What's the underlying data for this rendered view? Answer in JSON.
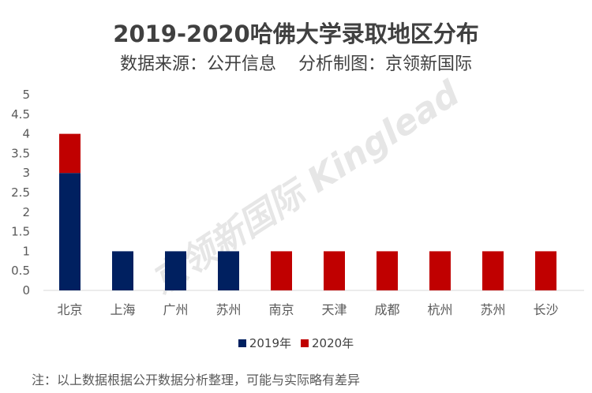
{
  "chart_data": {
    "type": "bar",
    "stacked": true,
    "title": "2019-2020哈佛大学录取地区分布",
    "subtitle": "数据来源：公开信息    分析制图：京领新国际",
    "categories": [
      "北京",
      "上海",
      "广州",
      "苏州",
      "南京",
      "天津",
      "成都",
      "杭州",
      "苏州",
      "长沙"
    ],
    "series": [
      {
        "name": "2019年",
        "color": "#002060",
        "values": [
          3,
          1,
          1,
          1,
          0,
          0,
          0,
          0,
          0,
          0
        ]
      },
      {
        "name": "2020年",
        "color": "#C00000",
        "values": [
          1,
          0,
          0,
          0,
          1,
          1,
          1,
          1,
          1,
          1
        ]
      }
    ],
    "ylim": [
      0,
      5
    ],
    "yticks": [
      "0",
      "0.5",
      "1",
      "1.5",
      "2",
      "2.5",
      "3",
      "3.5",
      "4",
      "4.5",
      "5"
    ],
    "grid": false,
    "legend": "bottom",
    "xlabel": "",
    "ylabel": ""
  },
  "watermark": "京领新国际 Kinglead",
  "note": "注：以上数据根据公开数据分析整理，可能与实际略有差异"
}
